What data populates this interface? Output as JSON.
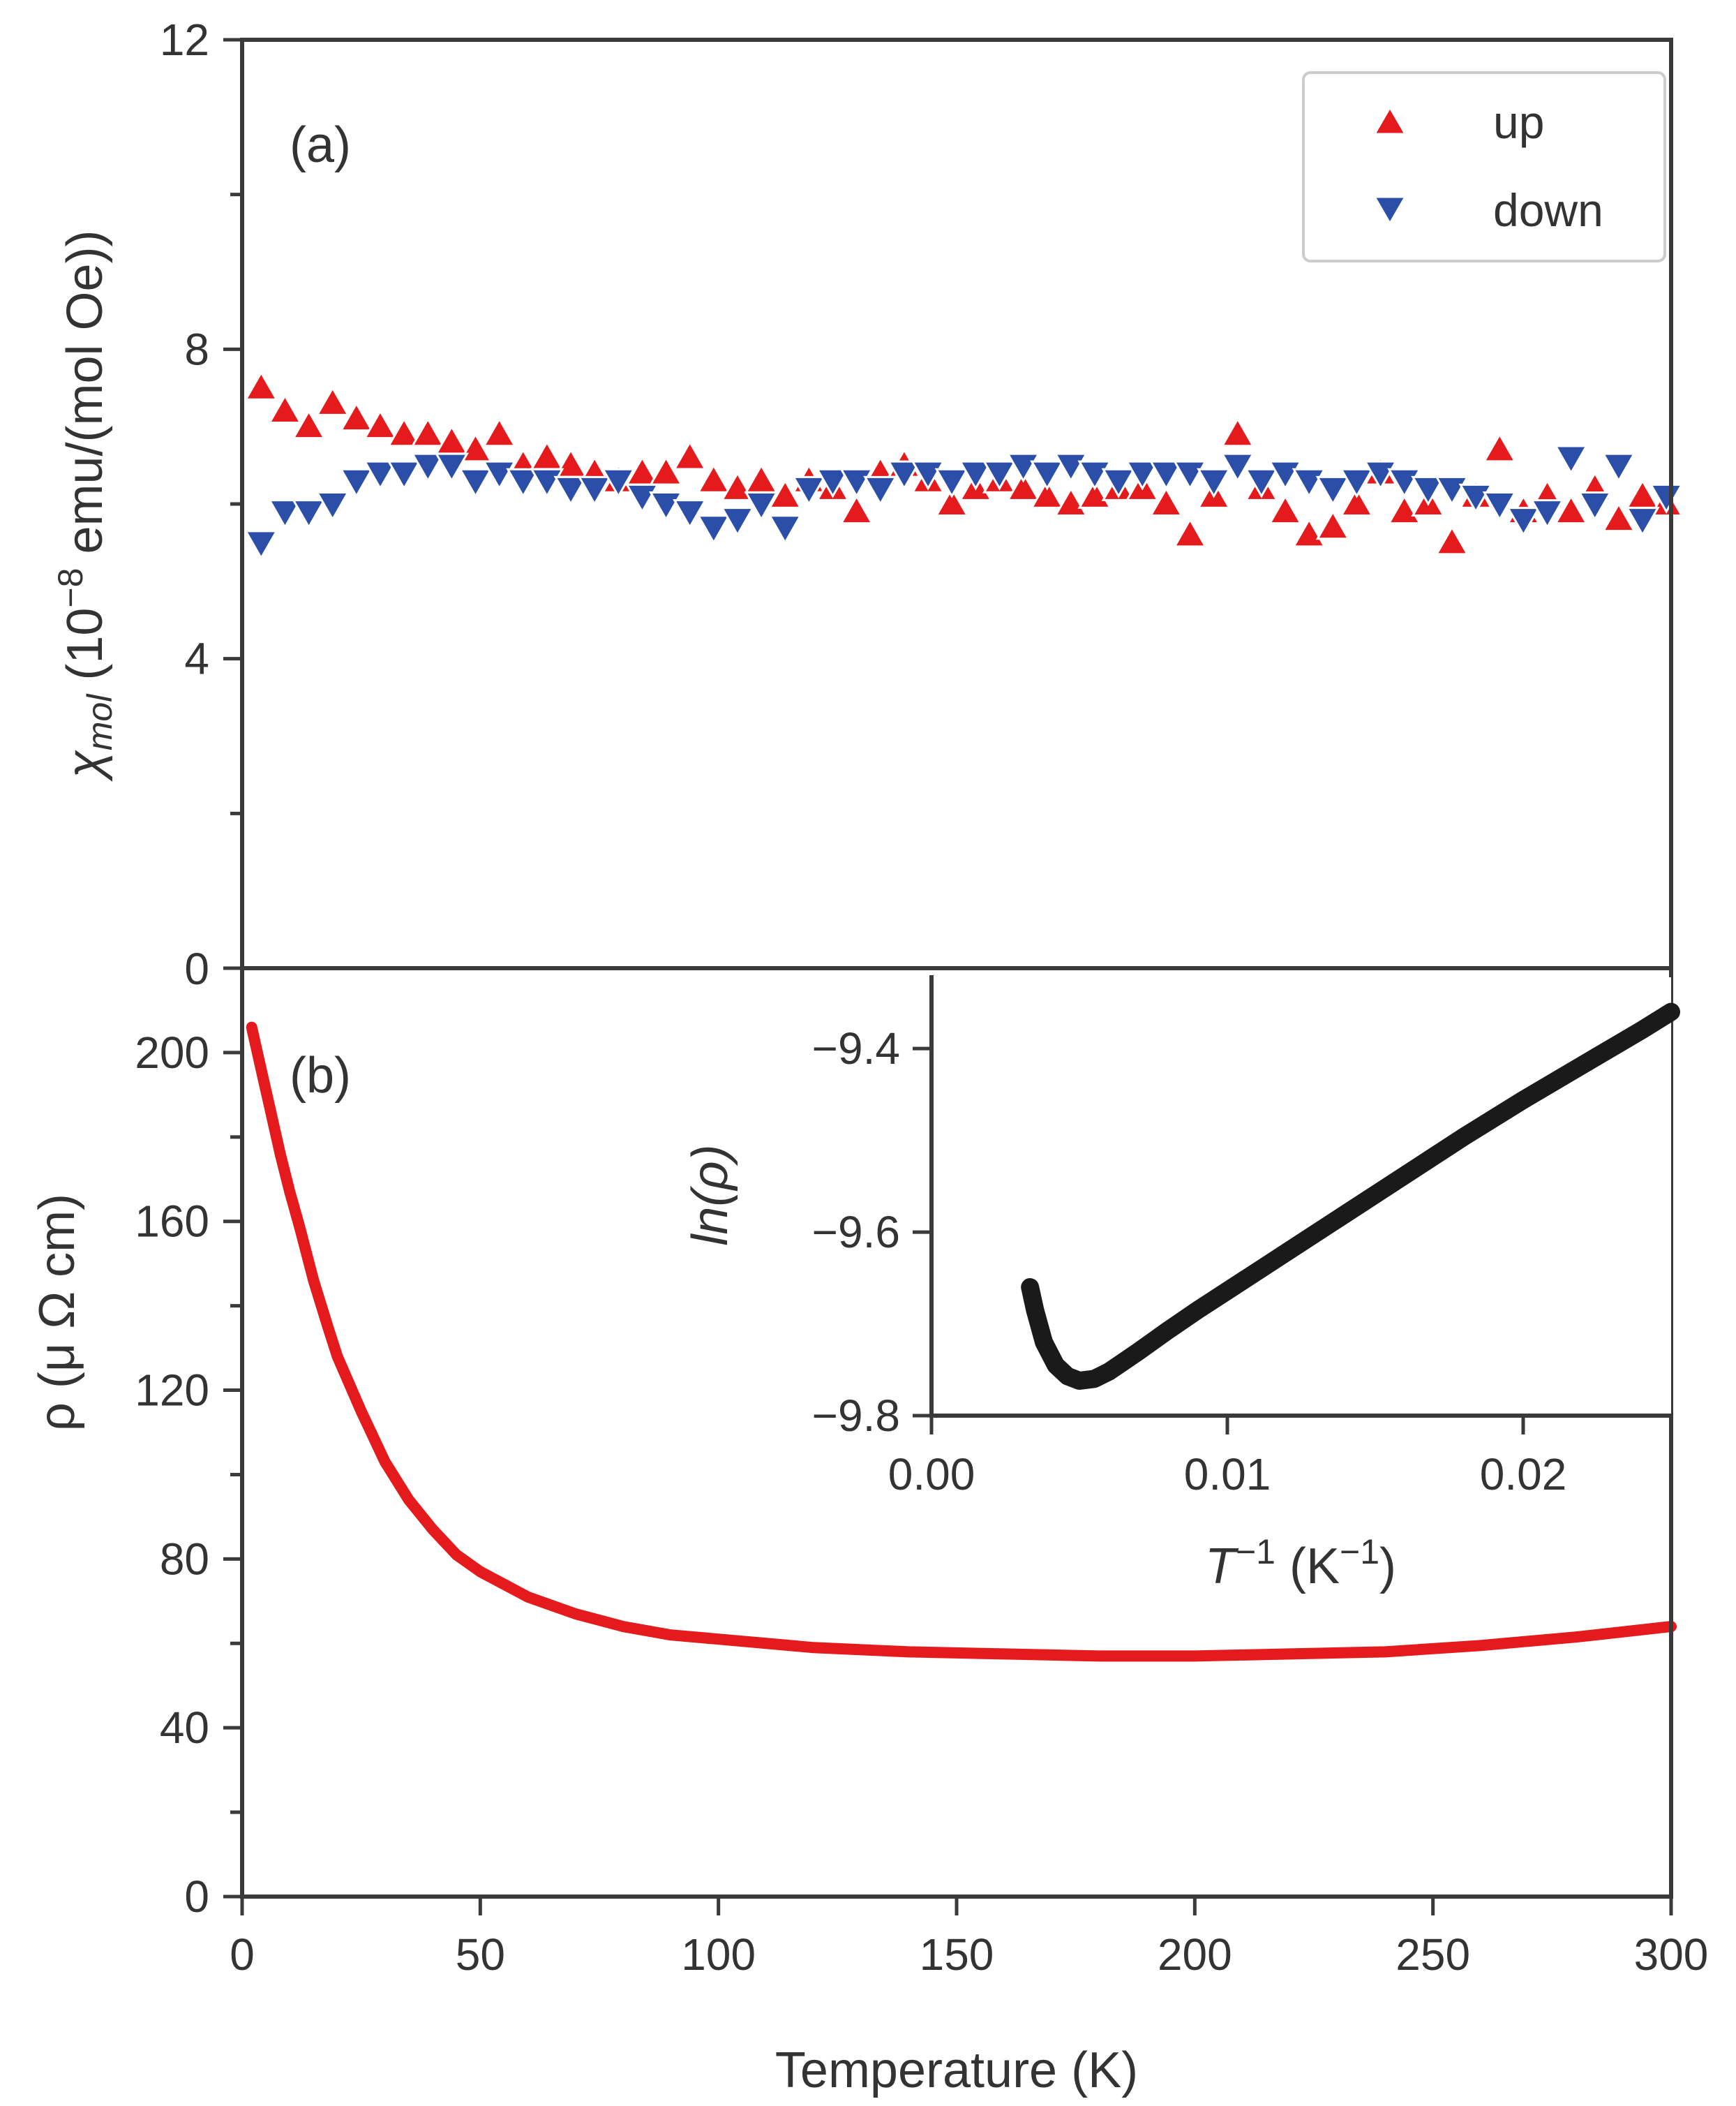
{
  "chart_data": [
    {
      "type": "scatter",
      "panel_label": "(a)",
      "title": "",
      "xlabel": "",
      "ylabel": {
        "symbol": "χ",
        "subscript": "mol",
        "unit_prefix": " (10",
        "exponent": "−8",
        "unit_suffix": " emu/(mol Oe))"
      },
      "xlim": [
        0,
        300
      ],
      "ylim": [
        0,
        12
      ],
      "yticks": [
        0,
        4,
        8,
        12
      ],
      "ytick_labels": [
        "0",
        "4",
        "8",
        "12"
      ],
      "legend": {
        "position": "top-right",
        "entries": [
          "up",
          "down"
        ]
      },
      "series": [
        {
          "name": "up",
          "marker": "triangle-up",
          "color": "#e41a1c",
          "x": [
            4,
            9,
            14,
            19,
            24,
            29,
            34,
            39,
            44,
            49,
            54,
            59,
            64,
            69,
            74,
            79,
            84,
            89,
            94,
            99,
            104,
            109,
            114,
            119,
            124,
            129,
            134,
            139,
            144,
            149,
            154,
            159,
            164,
            169,
            174,
            179,
            184,
            189,
            194,
            199,
            204,
            209,
            214,
            219,
            224,
            229,
            234,
            239,
            244,
            249,
            254,
            259,
            264,
            269,
            274,
            279,
            284,
            289,
            294,
            299
          ],
          "values": [
            7.5,
            7.2,
            7.0,
            7.3,
            7.1,
            7.0,
            6.9,
            6.9,
            6.8,
            6.7,
            6.9,
            6.5,
            6.6,
            6.5,
            6.4,
            6.3,
            6.4,
            6.4,
            6.6,
            6.3,
            6.2,
            6.3,
            6.1,
            6.3,
            6.2,
            5.9,
            6.4,
            6.5,
            6.3,
            6.0,
            6.2,
            6.3,
            6.2,
            6.1,
            6.0,
            6.1,
            6.2,
            6.2,
            6.0,
            5.6,
            6.1,
            6.9,
            6.2,
            5.9,
            5.6,
            5.7,
            6.0,
            6.4,
            5.9,
            6.0,
            5.5,
            6.1,
            6.7,
            5.9,
            6.1,
            5.9,
            6.2,
            5.8,
            6.1,
            6.0
          ]
        },
        {
          "name": "down",
          "marker": "triangle-down",
          "color": "#2b4fa8",
          "x": [
            4,
            9,
            14,
            19,
            24,
            29,
            34,
            39,
            44,
            49,
            54,
            59,
            64,
            69,
            74,
            79,
            84,
            89,
            94,
            99,
            104,
            109,
            114,
            119,
            124,
            129,
            134,
            139,
            144,
            149,
            154,
            159,
            164,
            169,
            174,
            179,
            184,
            189,
            194,
            199,
            204,
            209,
            214,
            219,
            224,
            229,
            234,
            239,
            244,
            249,
            254,
            259,
            264,
            269,
            274,
            279,
            284,
            289,
            294,
            299
          ],
          "values": [
            5.5,
            5.9,
            5.9,
            6.0,
            6.3,
            6.4,
            6.4,
            6.5,
            6.5,
            6.3,
            6.4,
            6.3,
            6.3,
            6.2,
            6.2,
            6.3,
            6.1,
            6.0,
            5.9,
            5.7,
            5.8,
            6.0,
            5.7,
            6.2,
            6.3,
            6.3,
            6.2,
            6.4,
            6.4,
            6.3,
            6.4,
            6.4,
            6.5,
            6.4,
            6.5,
            6.4,
            6.3,
            6.4,
            6.4,
            6.4,
            6.3,
            6.5,
            6.3,
            6.4,
            6.3,
            6.2,
            6.3,
            6.4,
            6.3,
            6.2,
            6.2,
            6.1,
            6.0,
            5.8,
            5.9,
            6.6,
            6.0,
            6.5,
            5.8,
            6.1
          ]
        }
      ]
    },
    {
      "type": "line",
      "panel_label": "(b)",
      "title": "",
      "xlabel": "Temperature (K)",
      "ylabel": "ρ (μ Ω cm)",
      "xlim": [
        0,
        300
      ],
      "ylim": [
        0,
        220
      ],
      "xticks": [
        0,
        50,
        100,
        150,
        200,
        250,
        300
      ],
      "xtick_labels": [
        "0",
        "50",
        "100",
        "150",
        "200",
        "250",
        "300"
      ],
      "yticks": [
        0,
        40,
        80,
        120,
        160,
        200
      ],
      "ytick_labels": [
        "0",
        "40",
        "80",
        "120",
        "160",
        "200"
      ],
      "series": [
        {
          "name": "rho",
          "color": "#e41a1c",
          "x": [
            2,
            4,
            6,
            8,
            10,
            12,
            15,
            18,
            20,
            25,
            30,
            35,
            40,
            45,
            50,
            60,
            70,
            80,
            90,
            100,
            120,
            140,
            160,
            180,
            200,
            220,
            240,
            260,
            280,
            300
          ],
          "values": [
            206,
            196,
            186,
            176,
            167,
            159,
            146,
            135,
            128,
            115,
            103,
            94,
            87,
            81,
            77,
            71,
            67,
            64,
            62,
            61,
            59,
            58,
            57.5,
            57,
            57,
            57.5,
            58,
            59.5,
            61.5,
            64
          ]
        }
      ]
    },
    {
      "type": "line",
      "panel_label": "",
      "title": "",
      "inset": true,
      "xlabel": {
        "base": "T",
        "base_exp": "−1",
        "unit_prefix": " (K",
        "unit_exp": "−1",
        "unit_suffix": ")"
      },
      "ylabel": "ln(ρ)",
      "xlim": [
        0,
        0.025
      ],
      "ylim": [
        -9.8,
        -9.32
      ],
      "xticks": [
        0,
        0.01,
        0.02
      ],
      "xtick_labels": [
        "0.00",
        "0.01",
        "0.02"
      ],
      "yticks": [
        -9.8,
        -9.6,
        -9.4
      ],
      "ytick_labels": [
        "−9.8",
        "−9.6",
        "−9.4"
      ],
      "series": [
        {
          "name": "ln_rho",
          "color": "#1a1a1a",
          "x": [
            0.00333,
            0.0035,
            0.0038,
            0.0042,
            0.0046,
            0.005,
            0.0055,
            0.006,
            0.007,
            0.008,
            0.009,
            0.01,
            0.012,
            0.014,
            0.016,
            0.018,
            0.02,
            0.022,
            0.024,
            0.025
          ],
          "values": [
            -9.66,
            -9.685,
            -9.72,
            -9.745,
            -9.757,
            -9.762,
            -9.76,
            -9.752,
            -9.73,
            -9.707,
            -9.685,
            -9.664,
            -9.622,
            -9.58,
            -9.538,
            -9.496,
            -9.456,
            -9.418,
            -9.38,
            -9.36
          ]
        }
      ]
    }
  ]
}
